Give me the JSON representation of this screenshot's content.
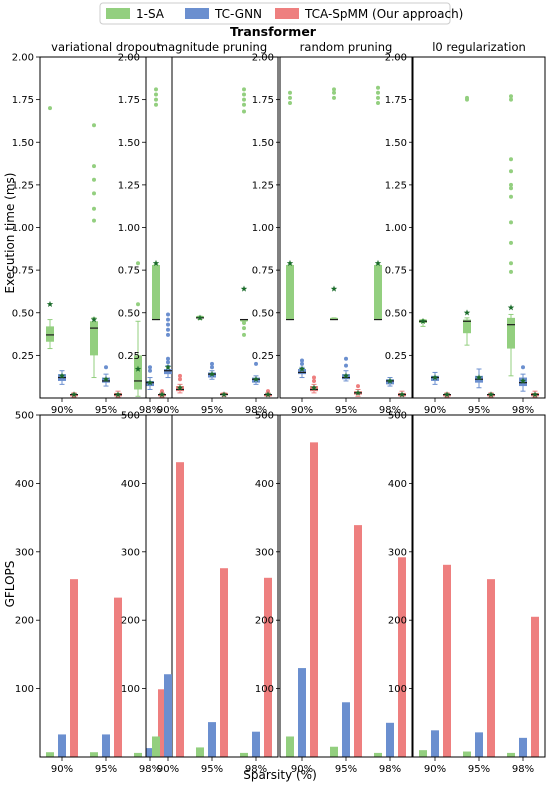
{
  "figure": {
    "title": "Transformer",
    "xlabel": "Sparsity (%)",
    "legend": [
      {
        "name": "1-SA",
        "color": "#93cf7f"
      },
      {
        "name": "TC-GNN",
        "color": "#6b8fcf"
      },
      {
        "name": "TCA-SpMM (Our approach)",
        "color": "#ee7f7f"
      }
    ]
  },
  "colors": {
    "sa": "#93cf7f",
    "tcgnn": "#6b8fcf",
    "tca": "#ee7f7f",
    "mean_star": "#1a6b2a"
  },
  "chart_data": [
    {
      "type": "box",
      "row": "execution-time",
      "panel": "variational dropout",
      "title": "variational dropout",
      "ylabel": "Execution time (ms)",
      "ylim": [
        0,
        2.0
      ],
      "yticks": [
        "0.25",
        "0.50",
        "0.75",
        "1.00",
        "1.25",
        "1.50",
        "1.75",
        "2.00"
      ],
      "categories": [
        "90%",
        "95%",
        "98%"
      ],
      "series": [
        {
          "name": "1-SA",
          "boxes": [
            {
              "q1": 0.33,
              "median": 0.37,
              "q3": 0.42,
              "lo": 0.29,
              "hi": 0.46,
              "mean": 0.55,
              "fliers": [
                1.7
              ]
            },
            {
              "q1": 0.25,
              "median": 0.41,
              "q3": 0.45,
              "lo": 0.12,
              "hi": 0.47,
              "mean": 0.46,
              "fliers": [
                1.04,
                1.11,
                1.2,
                1.28,
                1.36,
                1.6
              ]
            },
            {
              "q1": 0.05,
              "median": 0.1,
              "q3": 0.25,
              "lo": 0.01,
              "hi": 0.45,
              "mean": 0.17,
              "fliers": [
                0.55,
                0.79
              ]
            }
          ]
        },
        {
          "name": "TC-GNN",
          "boxes": [
            {
              "q1": 0.1,
              "median": 0.12,
              "q3": 0.14,
              "lo": 0.08,
              "hi": 0.16,
              "mean": 0.13,
              "fliers": []
            },
            {
              "q1": 0.09,
              "median": 0.1,
              "q3": 0.12,
              "lo": 0.07,
              "hi": 0.14,
              "mean": 0.11,
              "fliers": [
                0.18
              ]
            },
            {
              "q1": 0.07,
              "median": 0.09,
              "q3": 0.1,
              "lo": 0.05,
              "hi": 0.12,
              "mean": 0.09,
              "fliers": [
                0.16,
                0.18
              ]
            }
          ]
        },
        {
          "name": "TCA-SpMM (Our approach)",
          "boxes": [
            {
              "q1": 0.01,
              "median": 0.02,
              "q3": 0.02,
              "lo": 0.005,
              "hi": 0.03,
              "mean": 0.02,
              "fliers": []
            },
            {
              "q1": 0.01,
              "median": 0.02,
              "q3": 0.03,
              "lo": 0.005,
              "hi": 0.04,
              "mean": 0.02,
              "fliers": []
            },
            {
              "q1": 0.01,
              "median": 0.02,
              "q3": 0.02,
              "lo": 0.005,
              "hi": 0.03,
              "mean": 0.02,
              "fliers": [
                0.04
              ]
            }
          ]
        }
      ]
    },
    {
      "type": "box",
      "row": "execution-time",
      "panel": "magnitude pruning",
      "title": "magnitude pruning",
      "ylabel": "",
      "ylim": [
        0,
        2.0
      ],
      "yticks": [
        "0.25",
        "0.50",
        "0.75",
        "1.00",
        "1.25",
        "1.50",
        "1.75",
        "2.00"
      ],
      "categories": [
        "90%",
        "95%",
        "98%"
      ],
      "series": [
        {
          "name": "1-SA",
          "boxes": [
            {
              "q1": 0.46,
              "median": 0.46,
              "q3": 0.78,
              "lo": 0.46,
              "hi": 0.78,
              "mean": 0.79,
              "fliers": [
                1.72,
                1.75,
                1.78,
                1.81
              ]
            },
            {
              "q1": 0.47,
              "median": 0.47,
              "q3": 0.48,
              "lo": 0.46,
              "hi": 0.48,
              "mean": 0.47,
              "fliers": []
            },
            {
              "q1": 0.45,
              "median": 0.46,
              "q3": 0.46,
              "lo": 0.45,
              "hi": 0.46,
              "mean": 0.64,
              "fliers": [
                0.37,
                0.41,
                0.44,
                1.68,
                1.72,
                1.75,
                1.78,
                1.81
              ]
            }
          ]
        },
        {
          "name": "TC-GNN",
          "boxes": [
            {
              "q1": 0.14,
              "median": 0.16,
              "q3": 0.17,
              "lo": 0.12,
              "hi": 0.19,
              "mean": 0.18,
              "fliers": [
                0.21,
                0.23,
                0.37,
                0.4,
                0.43,
                0.46,
                0.49
              ]
            },
            {
              "q1": 0.12,
              "median": 0.14,
              "q3": 0.15,
              "lo": 0.11,
              "hi": 0.16,
              "mean": 0.14,
              "fliers": [
                0.18,
                0.2
              ]
            },
            {
              "q1": 0.09,
              "median": 0.11,
              "q3": 0.12,
              "lo": 0.08,
              "hi": 0.13,
              "mean": 0.11,
              "fliers": [
                0.2
              ]
            }
          ]
        },
        {
          "name": "TCA-SpMM (Our approach)",
          "boxes": [
            {
              "q1": 0.04,
              "median": 0.05,
              "q3": 0.07,
              "lo": 0.03,
              "hi": 0.08,
              "mean": 0.06,
              "fliers": [
                0.11,
                0.13
              ]
            },
            {
              "q1": 0.02,
              "median": 0.02,
              "q3": 0.03,
              "lo": 0.01,
              "hi": 0.03,
              "mean": 0.02,
              "fliers": []
            },
            {
              "q1": 0.01,
              "median": 0.02,
              "q3": 0.02,
              "lo": 0.01,
              "hi": 0.03,
              "mean": 0.02,
              "fliers": [
                0.04
              ]
            }
          ]
        }
      ]
    },
    {
      "type": "box",
      "row": "execution-time",
      "panel": "random pruning",
      "title": "random pruning",
      "ylabel": "",
      "ylim": [
        0,
        2.0
      ],
      "yticks": [
        "0.25",
        "0.50",
        "0.75",
        "1.00",
        "1.25",
        "1.50",
        "1.75",
        "2.00"
      ],
      "categories": [
        "90%",
        "95%",
        "98%"
      ],
      "series": [
        {
          "name": "1-SA",
          "boxes": [
            {
              "q1": 0.46,
              "median": 0.46,
              "q3": 0.78,
              "lo": 0.46,
              "hi": 0.78,
              "mean": 0.79,
              "fliers": [
                1.73,
                1.76,
                1.79
              ]
            },
            {
              "q1": 0.46,
              "median": 0.46,
              "q3": 0.47,
              "lo": 0.46,
              "hi": 0.47,
              "mean": 0.64,
              "fliers": [
                1.76,
                1.79,
                1.81
              ]
            },
            {
              "q1": 0.46,
              "median": 0.46,
              "q3": 0.78,
              "lo": 0.46,
              "hi": 0.78,
              "mean": 0.79,
              "fliers": [
                1.73,
                1.76,
                1.79,
                1.82
              ]
            }
          ]
        },
        {
          "name": "TC-GNN",
          "boxes": [
            {
              "q1": 0.14,
              "median": 0.15,
              "q3": 0.17,
              "lo": 0.12,
              "hi": 0.18,
              "mean": 0.17,
              "fliers": [
                0.2,
                0.22
              ]
            },
            {
              "q1": 0.11,
              "median": 0.12,
              "q3": 0.14,
              "lo": 0.1,
              "hi": 0.16,
              "mean": 0.13,
              "fliers": [
                0.19,
                0.23
              ]
            },
            {
              "q1": 0.08,
              "median": 0.1,
              "q3": 0.11,
              "lo": 0.07,
              "hi": 0.12,
              "mean": 0.1,
              "fliers": []
            }
          ]
        },
        {
          "name": "TCA-SpMM (Our approach)",
          "boxes": [
            {
              "q1": 0.04,
              "median": 0.05,
              "q3": 0.07,
              "lo": 0.03,
              "hi": 0.08,
              "mean": 0.06,
              "fliers": [
                0.1,
                0.12
              ]
            },
            {
              "q1": 0.02,
              "median": 0.03,
              "q3": 0.04,
              "lo": 0.01,
              "hi": 0.05,
              "mean": 0.03,
              "fliers": [
                0.07
              ]
            },
            {
              "q1": 0.01,
              "median": 0.02,
              "q3": 0.03,
              "lo": 0.01,
              "hi": 0.04,
              "mean": 0.02,
              "fliers": []
            }
          ]
        }
      ]
    },
    {
      "type": "box",
      "row": "execution-time",
      "panel": "l0 regularization",
      "title": "l0 regularization",
      "ylabel": "",
      "ylim": [
        0,
        2.0
      ],
      "yticks": [
        "0.25",
        "0.50",
        "0.75",
        "1.00",
        "1.25",
        "1.50",
        "1.75",
        "2.00"
      ],
      "categories": [
        "90%",
        "95%",
        "98%"
      ],
      "series": [
        {
          "name": "1-SA",
          "boxes": [
            {
              "q1": 0.44,
              "median": 0.45,
              "q3": 0.46,
              "lo": 0.42,
              "hi": 0.46,
              "mean": 0.45,
              "fliers": []
            },
            {
              "q1": 0.38,
              "median": 0.45,
              "q3": 0.46,
              "lo": 0.31,
              "hi": 0.47,
              "mean": 0.5,
              "fliers": [
                1.75,
                1.76
              ]
            },
            {
              "q1": 0.29,
              "median": 0.43,
              "q3": 0.47,
              "lo": 0.13,
              "hi": 0.49,
              "mean": 0.53,
              "fliers": [
                0.74,
                0.79,
                0.91,
                1.03,
                1.18,
                1.23,
                1.25,
                1.33,
                1.4,
                1.75,
                1.77
              ]
            }
          ]
        },
        {
          "name": "TC-GNN",
          "boxes": [
            {
              "q1": 0.1,
              "median": 0.12,
              "q3": 0.13,
              "lo": 0.08,
              "hi": 0.15,
              "mean": 0.12,
              "fliers": []
            },
            {
              "q1": 0.09,
              "median": 0.11,
              "q3": 0.13,
              "lo": 0.06,
              "hi": 0.17,
              "mean": 0.12,
              "fliers": []
            },
            {
              "q1": 0.07,
              "median": 0.09,
              "q3": 0.12,
              "lo": 0.04,
              "hi": 0.14,
              "mean": 0.1,
              "fliers": [
                0.18
              ]
            }
          ]
        },
        {
          "name": "TCA-SpMM (Our approach)",
          "boxes": [
            {
              "q1": 0.01,
              "median": 0.02,
              "q3": 0.02,
              "lo": 0.005,
              "hi": 0.03,
              "mean": 0.02,
              "fliers": []
            },
            {
              "q1": 0.01,
              "median": 0.02,
              "q3": 0.02,
              "lo": 0.005,
              "hi": 0.03,
              "mean": 0.02,
              "fliers": []
            },
            {
              "q1": 0.01,
              "median": 0.02,
              "q3": 0.03,
              "lo": 0.005,
              "hi": 0.04,
              "mean": 0.02,
              "fliers": []
            }
          ]
        }
      ]
    },
    {
      "type": "bar",
      "row": "gflops",
      "panel": "variational dropout",
      "ylabel": "GFLOPS",
      "ylim": [
        0,
        500
      ],
      "yticks": [
        "100",
        "200",
        "300",
        "400",
        "500"
      ],
      "categories": [
        "90%",
        "95%",
        "98%"
      ],
      "series": [
        {
          "name": "1-SA",
          "values": [
            7,
            7,
            6
          ]
        },
        {
          "name": "TC-GNN",
          "values": [
            33,
            33,
            13
          ]
        },
        {
          "name": "TCA-SpMM (Our approach)",
          "values": [
            260,
            233,
            99
          ]
        }
      ]
    },
    {
      "type": "bar",
      "row": "gflops",
      "panel": "magnitude pruning",
      "ylabel": "",
      "ylim": [
        0,
        500
      ],
      "yticks": [
        "100",
        "200",
        "300",
        "400",
        "500"
      ],
      "categories": [
        "90%",
        "95%",
        "98%"
      ],
      "series": [
        {
          "name": "1-SA",
          "values": [
            30,
            14,
            6
          ]
        },
        {
          "name": "TC-GNN",
          "values": [
            121,
            51,
            37
          ]
        },
        {
          "name": "TCA-SpMM (Our approach)",
          "values": [
            431,
            276,
            262
          ]
        }
      ]
    },
    {
      "type": "bar",
      "row": "gflops",
      "panel": "random pruning",
      "ylabel": "",
      "ylim": [
        0,
        500
      ],
      "yticks": [
        "100",
        "200",
        "300",
        "400",
        "500"
      ],
      "categories": [
        "90%",
        "95%",
        "98%"
      ],
      "series": [
        {
          "name": "1-SA",
          "values": [
            30,
            15,
            6
          ]
        },
        {
          "name": "TC-GNN",
          "values": [
            130,
            80,
            50
          ]
        },
        {
          "name": "TCA-SpMM (Our approach)",
          "values": [
            460,
            339,
            292
          ]
        }
      ]
    },
    {
      "type": "bar",
      "row": "gflops",
      "panel": "l0 regularization",
      "ylabel": "",
      "ylim": [
        0,
        500
      ],
      "yticks": [
        "100",
        "200",
        "300",
        "400",
        "500"
      ],
      "categories": [
        "90%",
        "95%",
        "98%"
      ],
      "series": [
        {
          "name": "1-SA",
          "values": [
            10,
            8,
            6
          ]
        },
        {
          "name": "TC-GNN",
          "values": [
            39,
            36,
            28
          ]
        },
        {
          "name": "TCA-SpMM (Our approach)",
          "values": [
            281,
            260,
            205
          ]
        }
      ]
    }
  ]
}
